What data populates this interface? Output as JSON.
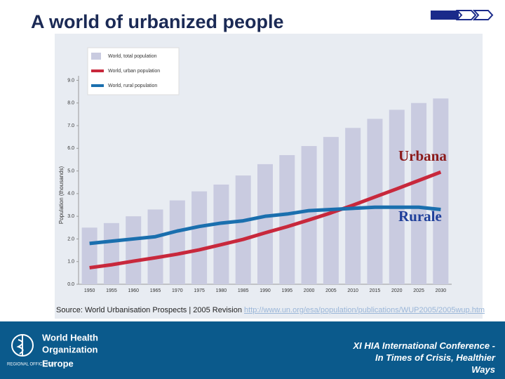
{
  "slide": {
    "title": "A world of urbanized people",
    "source": "Source: World Urbanisation Prospects | 2005 Revision",
    "source_url": "http://www.un.org/esa/population/publications/WUP2005/2005wup.htm",
    "logo": [
      "World Health",
      "Organization",
      "REGIONAL OFFICE FOR",
      "Europe"
    ],
    "footer": [
      "XI HIA International Conference -",
      "In Times of Crisis, Healthier",
      "Ways"
    ]
  },
  "chart_data": {
    "type": "bar",
    "y_label": "Population (thousands)",
    "categories": [
      "1950",
      "1955",
      "1960",
      "1965",
      "1970",
      "1975",
      "1980",
      "1985",
      "1990",
      "1995",
      "2000",
      "2005",
      "2010",
      "2015",
      "2020",
      "2025",
      "2030"
    ],
    "series": [
      {
        "name": "World, total population",
        "type": "bar",
        "color": "#c9cbe0",
        "values": [
          2.5,
          2.7,
          3.0,
          3.3,
          3.7,
          4.1,
          4.4,
          4.8,
          5.3,
          5.7,
          6.1,
          6.5,
          6.9,
          7.3,
          7.7,
          8.0,
          8.2
        ]
      },
      {
        "name": "World, urban population",
        "type": "line",
        "color": "#c8283c",
        "values": [
          0.73,
          0.86,
          1.02,
          1.17,
          1.33,
          1.52,
          1.75,
          1.98,
          2.27,
          2.54,
          2.84,
          3.15,
          3.49,
          3.85,
          4.21,
          4.58,
          4.95
        ]
      },
      {
        "name": "World, rural population",
        "type": "line",
        "color": "#1a6fae",
        "values": [
          1.8,
          1.9,
          2.0,
          2.1,
          2.35,
          2.55,
          2.7,
          2.8,
          3.0,
          3.1,
          3.25,
          3.3,
          3.35,
          3.4,
          3.4,
          3.4,
          3.3
        ]
      }
    ],
    "ylim": [
      0,
      9.2
    ],
    "yticks": [
      {
        "value": 0,
        "label": "0.0"
      },
      {
        "value": 1,
        "label": "1.0"
      },
      {
        "value": 2,
        "label": "2.0"
      },
      {
        "value": 3,
        "label": "3.0"
      },
      {
        "value": 4,
        "label": "4.0"
      },
      {
        "value": 5,
        "label": "5.0"
      },
      {
        "value": 6,
        "label": "6.0"
      },
      {
        "value": 7,
        "label": "7.0"
      },
      {
        "value": 8,
        "label": "8.0"
      },
      {
        "value": 9,
        "label": "9.0"
      }
    ],
    "annotations": [
      {
        "text": "Urbana",
        "color": "#8b1a1a"
      },
      {
        "text": "Rurale",
        "color": "#1f3f9a"
      }
    ]
  }
}
